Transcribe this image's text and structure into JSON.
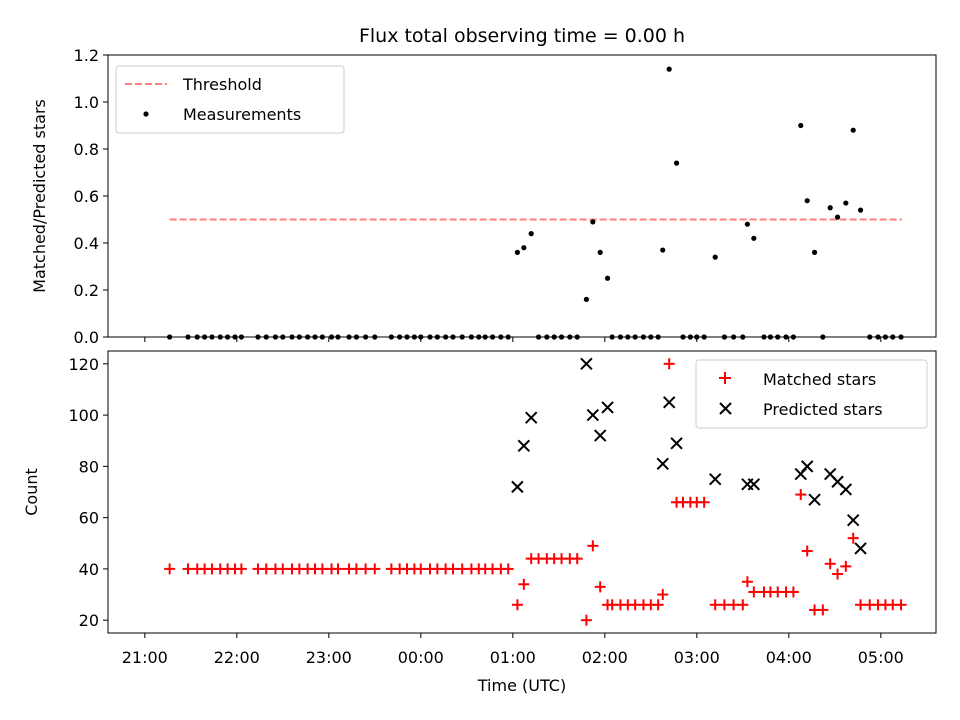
{
  "colors": {
    "threshold": "#ff7f7f",
    "measurements": "#000000",
    "matched": "#ff0000",
    "predicted": "#000000"
  },
  "x_ticks": [
    {
      "t": 21.0,
      "label": "21:00"
    },
    {
      "t": 22.0,
      "label": "22:00"
    },
    {
      "t": 23.0,
      "label": "23:00"
    },
    {
      "t": 24.0,
      "label": "00:00"
    },
    {
      "t": 25.0,
      "label": "01:00"
    },
    {
      "t": 26.0,
      "label": "02:00"
    },
    {
      "t": 27.0,
      "label": "03:00"
    },
    {
      "t": 28.0,
      "label": "04:00"
    },
    {
      "t": 29.0,
      "label": "05:00"
    }
  ],
  "chart_data": [
    {
      "type": "scatter",
      "title": "Flux total observing time = 0.00 h",
      "xlabel": "",
      "ylabel": "Matched/Predicted stars",
      "xlim": [
        20.6,
        29.6
      ],
      "ylim": [
        0,
        1.2
      ],
      "y_ticks": [
        "0.0",
        "0.2",
        "0.4",
        "0.6",
        "0.8",
        "1.0",
        "1.2"
      ],
      "y_tick_values": [
        0,
        0.2,
        0.4,
        0.6,
        0.8,
        1.0,
        1.2
      ],
      "legend": {
        "position": "top-left",
        "entries": [
          "Threshold",
          "Measurements"
        ]
      },
      "threshold": {
        "name": "Threshold",
        "value": 0.5,
        "x_range": [
          21.27,
          29.23
        ],
        "style": "dashed"
      },
      "measurements": {
        "name": "Measurements",
        "points": [
          [
            21.27,
            0
          ],
          [
            21.47,
            0
          ],
          [
            21.57,
            0
          ],
          [
            21.65,
            0
          ],
          [
            21.73,
            0
          ],
          [
            21.82,
            0
          ],
          [
            21.9,
            0
          ],
          [
            21.98,
            0
          ],
          [
            22.05,
            0
          ],
          [
            22.23,
            0
          ],
          [
            22.32,
            0
          ],
          [
            22.42,
            0
          ],
          [
            22.5,
            0
          ],
          [
            22.6,
            0
          ],
          [
            22.68,
            0
          ],
          [
            22.77,
            0
          ],
          [
            22.85,
            0
          ],
          [
            22.93,
            0
          ],
          [
            23.03,
            0
          ],
          [
            23.1,
            0
          ],
          [
            23.22,
            0
          ],
          [
            23.3,
            0
          ],
          [
            23.4,
            0
          ],
          [
            23.5,
            0
          ],
          [
            23.68,
            0
          ],
          [
            23.77,
            0
          ],
          [
            23.85,
            0
          ],
          [
            23.93,
            0
          ],
          [
            24.0,
            0
          ],
          [
            24.1,
            0
          ],
          [
            24.18,
            0
          ],
          [
            24.27,
            0
          ],
          [
            24.35,
            0
          ],
          [
            24.45,
            0
          ],
          [
            24.55,
            0
          ],
          [
            24.63,
            0
          ],
          [
            24.7,
            0
          ],
          [
            24.78,
            0
          ],
          [
            24.87,
            0
          ],
          [
            24.95,
            0
          ],
          [
            25.05,
            0.36
          ],
          [
            25.12,
            0.38
          ],
          [
            25.2,
            0.44
          ],
          [
            25.28,
            0
          ],
          [
            25.37,
            0
          ],
          [
            25.45,
            0
          ],
          [
            25.53,
            0
          ],
          [
            25.62,
            0
          ],
          [
            25.7,
            0
          ],
          [
            25.8,
            0.16
          ],
          [
            25.87,
            0.49
          ],
          [
            25.95,
            0.36
          ],
          [
            26.03,
            0.25
          ],
          [
            26.08,
            0
          ],
          [
            26.17,
            0
          ],
          [
            26.25,
            0
          ],
          [
            26.33,
            0
          ],
          [
            26.42,
            0
          ],
          [
            26.5,
            0
          ],
          [
            26.58,
            0
          ],
          [
            26.63,
            0.37
          ],
          [
            26.7,
            1.14
          ],
          [
            26.78,
            0.74
          ],
          [
            26.85,
            0
          ],
          [
            26.93,
            0
          ],
          [
            27.0,
            0
          ],
          [
            27.08,
            0
          ],
          [
            27.2,
            0.34
          ],
          [
            27.3,
            0
          ],
          [
            27.4,
            0
          ],
          [
            27.5,
            0
          ],
          [
            27.55,
            0.48
          ],
          [
            27.62,
            0.42
          ],
          [
            27.73,
            0
          ],
          [
            27.8,
            0
          ],
          [
            27.88,
            0
          ],
          [
            27.97,
            0
          ],
          [
            28.05,
            0
          ],
          [
            28.13,
            0.9
          ],
          [
            28.2,
            0.58
          ],
          [
            28.28,
            0.36
          ],
          [
            28.37,
            0
          ],
          [
            28.45,
            0.55
          ],
          [
            28.53,
            0.51
          ],
          [
            28.62,
            0.57
          ],
          [
            28.7,
            0.88
          ],
          [
            28.78,
            0.54
          ],
          [
            28.88,
            0
          ],
          [
            28.97,
            0
          ],
          [
            29.05,
            0
          ],
          [
            29.13,
            0
          ],
          [
            29.22,
            0
          ]
        ]
      }
    },
    {
      "type": "scatter",
      "title": "",
      "xlabel": "Time (UTC)",
      "ylabel": "Count",
      "xlim": [
        20.6,
        29.6
      ],
      "ylim": [
        15,
        125
      ],
      "y_ticks": [
        "20",
        "40",
        "60",
        "80",
        "100",
        "120"
      ],
      "y_tick_values": [
        20,
        40,
        60,
        80,
        100,
        120
      ],
      "legend": {
        "position": "top-right",
        "entries": [
          "Matched stars",
          "Predicted stars"
        ]
      },
      "series": [
        {
          "name": "Matched stars",
          "marker": "+",
          "points": [
            [
              21.27,
              40
            ],
            [
              21.47,
              40
            ],
            [
              21.57,
              40
            ],
            [
              21.65,
              40
            ],
            [
              21.73,
              40
            ],
            [
              21.82,
              40
            ],
            [
              21.9,
              40
            ],
            [
              21.98,
              40
            ],
            [
              22.05,
              40
            ],
            [
              22.23,
              40
            ],
            [
              22.32,
              40
            ],
            [
              22.42,
              40
            ],
            [
              22.5,
              40
            ],
            [
              22.6,
              40
            ],
            [
              22.68,
              40
            ],
            [
              22.77,
              40
            ],
            [
              22.85,
              40
            ],
            [
              22.93,
              40
            ],
            [
              23.03,
              40
            ],
            [
              23.1,
              40
            ],
            [
              23.22,
              40
            ],
            [
              23.3,
              40
            ],
            [
              23.4,
              40
            ],
            [
              23.5,
              40
            ],
            [
              23.68,
              40
            ],
            [
              23.77,
              40
            ],
            [
              23.85,
              40
            ],
            [
              23.93,
              40
            ],
            [
              24.0,
              40
            ],
            [
              24.1,
              40
            ],
            [
              24.18,
              40
            ],
            [
              24.27,
              40
            ],
            [
              24.35,
              40
            ],
            [
              24.45,
              40
            ],
            [
              24.55,
              40
            ],
            [
              24.63,
              40
            ],
            [
              24.7,
              40
            ],
            [
              24.78,
              40
            ],
            [
              24.87,
              40
            ],
            [
              24.95,
              40
            ],
            [
              25.05,
              26
            ],
            [
              25.12,
              34
            ],
            [
              25.2,
              44
            ],
            [
              25.28,
              44
            ],
            [
              25.37,
              44
            ],
            [
              25.45,
              44
            ],
            [
              25.53,
              44
            ],
            [
              25.62,
              44
            ],
            [
              25.7,
              44
            ],
            [
              25.8,
              20
            ],
            [
              25.87,
              49
            ],
            [
              25.95,
              33
            ],
            [
              26.03,
              26
            ],
            [
              26.08,
              26
            ],
            [
              26.17,
              26
            ],
            [
              26.25,
              26
            ],
            [
              26.33,
              26
            ],
            [
              26.42,
              26
            ],
            [
              26.5,
              26
            ],
            [
              26.58,
              26
            ],
            [
              26.63,
              30
            ],
            [
              26.7,
              120
            ],
            [
              26.78,
              66
            ],
            [
              26.85,
              66
            ],
            [
              26.93,
              66
            ],
            [
              27.0,
              66
            ],
            [
              27.08,
              66
            ],
            [
              27.2,
              26
            ],
            [
              27.3,
              26
            ],
            [
              27.4,
              26
            ],
            [
              27.5,
              26
            ],
            [
              27.55,
              35
            ],
            [
              27.62,
              31
            ],
            [
              27.73,
              31
            ],
            [
              27.8,
              31
            ],
            [
              27.88,
              31
            ],
            [
              27.97,
              31
            ],
            [
              28.05,
              31
            ],
            [
              28.13,
              69
            ],
            [
              28.2,
              47
            ],
            [
              28.28,
              24
            ],
            [
              28.37,
              24
            ],
            [
              28.45,
              42
            ],
            [
              28.53,
              38
            ],
            [
              28.62,
              41
            ],
            [
              28.7,
              52
            ],
            [
              28.78,
              26
            ],
            [
              28.88,
              26
            ],
            [
              28.97,
              26
            ],
            [
              29.05,
              26
            ],
            [
              29.13,
              26
            ],
            [
              29.22,
              26
            ]
          ]
        },
        {
          "name": "Predicted stars",
          "marker": "x",
          "points": [
            [
              25.05,
              72
            ],
            [
              25.12,
              88
            ],
            [
              25.2,
              99
            ],
            [
              25.8,
              120
            ],
            [
              25.87,
              100
            ],
            [
              25.95,
              92
            ],
            [
              26.03,
              103
            ],
            [
              26.63,
              81
            ],
            [
              26.7,
              105
            ],
            [
              26.78,
              89
            ],
            [
              27.2,
              75
            ],
            [
              27.55,
              73
            ],
            [
              27.62,
              73
            ],
            [
              28.13,
              77
            ],
            [
              28.2,
              80
            ],
            [
              28.28,
              67
            ],
            [
              28.45,
              77
            ],
            [
              28.53,
              74
            ],
            [
              28.62,
              71
            ],
            [
              28.7,
              59
            ],
            [
              28.78,
              48
            ]
          ]
        }
      ]
    }
  ]
}
